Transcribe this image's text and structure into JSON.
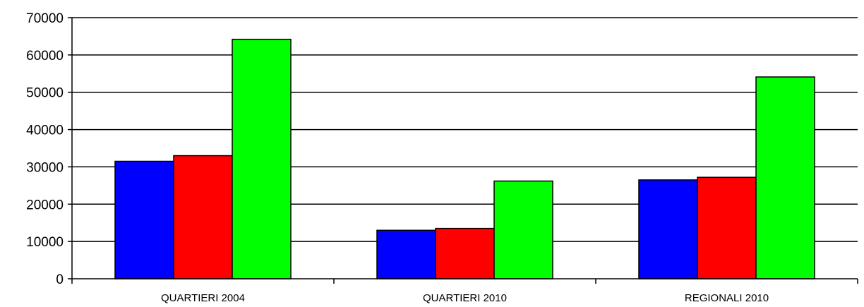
{
  "chart_data": {
    "type": "bar",
    "categories": [
      "QUARTIERI 2004",
      "QUARTIERI 2010",
      "REGIONALI 2010"
    ],
    "series": [
      {
        "values": [
          31500,
          13000,
          26500
        ],
        "color": "#0000ff"
      },
      {
        "values": [
          33000,
          13500,
          27200
        ],
        "color": "#ff0000"
      },
      {
        "values": [
          64200,
          26200,
          54100
        ],
        "color": "#00ff00"
      }
    ],
    "ylim": [
      0,
      70000
    ],
    "yticks": [
      0,
      10000,
      20000,
      30000,
      40000,
      50000,
      60000,
      70000
    ],
    "ytick_labels": [
      "0",
      "10000",
      "20000",
      "30000",
      "40000",
      "50000",
      "60000",
      "70000"
    ],
    "grid": true,
    "title": "",
    "xlabel": "",
    "ylabel": ""
  }
}
